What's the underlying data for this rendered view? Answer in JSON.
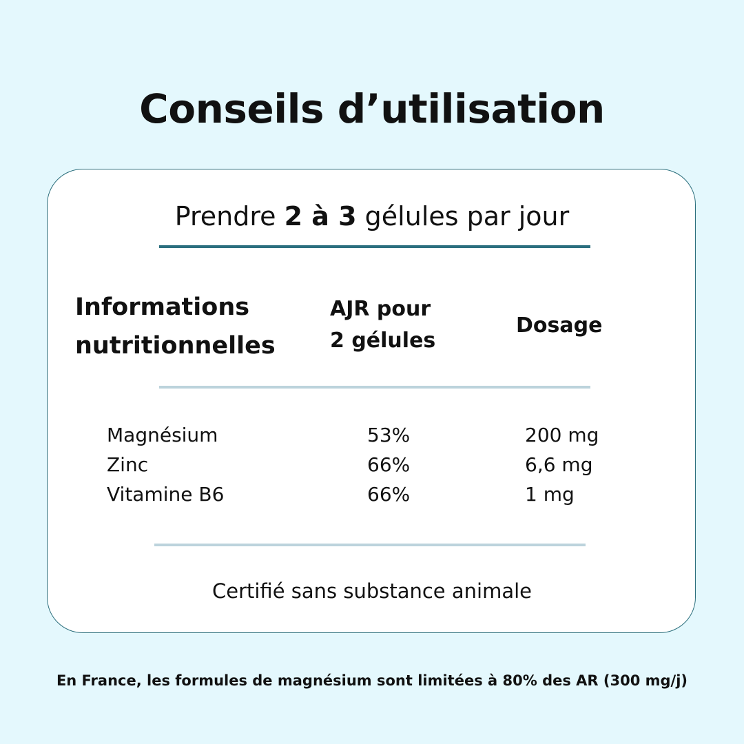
{
  "title": "Conseils d’utilisation",
  "dosage": {
    "prefix": "Prendre ",
    "amount": "2 à 3",
    "suffix": " gélules par jour"
  },
  "table": {
    "headers": {
      "info_line1": "Informations",
      "info_line2": "nutritionnelles",
      "ajr_line1": "AJR pour",
      "ajr_line2": "2 gélules",
      "dosage": "Dosage"
    },
    "rows": [
      {
        "name": "Magnésium",
        "ajr": "53%",
        "dose": "200 mg"
      },
      {
        "name": "Zinc",
        "ajr": "66%",
        "dose": "6,6 mg"
      },
      {
        "name": "Vitamine B6",
        "ajr": "66%",
        "dose": "1 mg"
      }
    ]
  },
  "certified": "Certifié sans substance animale",
  "footnote": "En France, les formules de magnésium sont limitées à 80% des AR (300 mg/j)",
  "colors": {
    "background": "#e4f8fd",
    "accent_dark": "#2b6f7f",
    "accent_light": "#bcd3dc",
    "card": "#ffffff"
  }
}
